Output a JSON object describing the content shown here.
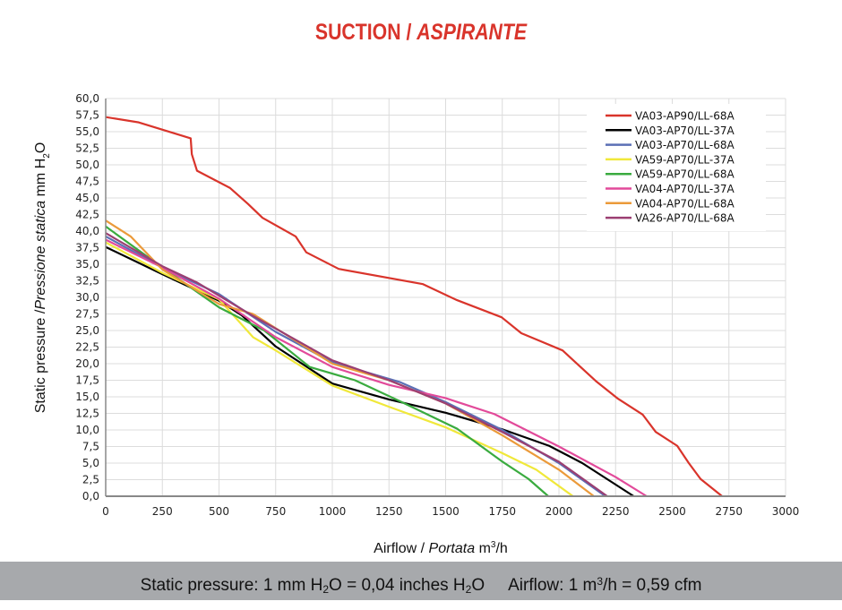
{
  "title": {
    "main": "SUCTION /",
    "italic": "ASPIRANTE"
  },
  "footer": {
    "pressure_prefix": "Static pressure: 1 mm H",
    "pressure_mid": "O = 0,04 inches H",
    "pressure_end": "O",
    "sub": "2",
    "airflow_prefix": "Airflow: 1 m",
    "sup": "3",
    "airflow_end": "/h = 0,59 cfm"
  },
  "chart_data": {
    "type": "line",
    "title": "SUCTION / ASPIRANTE",
    "xlabel": "Airflow / Portata m³/h",
    "xlabel_parts": {
      "a": "Airflow /",
      "b": "Portata",
      "c": "m",
      "sup": "3",
      "d": "/h"
    },
    "ylabel": "Static pressure / Pressione statica mm H2O",
    "ylabel_parts": {
      "a": "Static pressure /",
      "b": "Pressione statica",
      "c": "mm  H",
      "sub": "2",
      "d": "O"
    },
    "xlim": [
      0,
      3000
    ],
    "ylim": [
      0,
      60
    ],
    "x_ticks": [
      "0",
      "250",
      "500",
      "750",
      "1000",
      "1250",
      "1500",
      "1750",
      "2000",
      "2250",
      "2500",
      "2750",
      "3000"
    ],
    "y_ticks": [
      "0,0",
      "2,5",
      "5,0",
      "7,5",
      "10,0",
      "12,5",
      "15,0",
      "17,5",
      "20,0",
      "22,5",
      "25,0",
      "27,5",
      "30,0",
      "32,5",
      "35,0",
      "37,5",
      "40,0",
      "42,5",
      "45,0",
      "47,5",
      "50,0",
      "52,5",
      "55,0",
      "57,5",
      "60,0"
    ],
    "grid": true,
    "legend_position": "top-right",
    "series": [
      {
        "name": "VA03-AP90/LL-68A",
        "color": "#d9342b",
        "points": [
          [
            0,
            57.2
          ],
          [
            146,
            56.4
          ],
          [
            375,
            54.0
          ],
          [
            380,
            51.6
          ],
          [
            403,
            49.1
          ],
          [
            549,
            46.5
          ],
          [
            628,
            44.1
          ],
          [
            692,
            42.0
          ],
          [
            838,
            39.2
          ],
          [
            885,
            36.8
          ],
          [
            1028,
            34.3
          ],
          [
            1400,
            32.0
          ],
          [
            1549,
            29.6
          ],
          [
            1747,
            27.0
          ],
          [
            1834,
            24.6
          ],
          [
            2016,
            22.0
          ],
          [
            2162,
            17.4
          ],
          [
            2261,
            14.7
          ],
          [
            2370,
            12.3
          ],
          [
            2427,
            9.7
          ],
          [
            2522,
            7.6
          ],
          [
            2573,
            5.0
          ],
          [
            2625,
            2.6
          ],
          [
            2720,
            0
          ]
        ]
      },
      {
        "name": "VA03-AP70/LL-37A",
        "color": "#000000",
        "points": [
          [
            0,
            37.6
          ],
          [
            250,
            33.5
          ],
          [
            500,
            29.5
          ],
          [
            600,
            27.3
          ],
          [
            750,
            22.6
          ],
          [
            1000,
            17.0
          ],
          [
            1250,
            14.6
          ],
          [
            1500,
            12.6
          ],
          [
            1750,
            10.1
          ],
          [
            1957,
            7.6
          ],
          [
            2103,
            5.0
          ],
          [
            2330,
            0
          ]
        ]
      },
      {
        "name": "VA03-AP70/LL-68A",
        "color": "#5b6fb5",
        "points": [
          [
            0,
            39.2
          ],
          [
            250,
            34.5
          ],
          [
            500,
            30.5
          ],
          [
            750,
            24.8
          ],
          [
            1000,
            20.2
          ],
          [
            1300,
            17.2
          ],
          [
            1500,
            14.2
          ],
          [
            1750,
            10.0
          ],
          [
            2000,
            5.0
          ],
          [
            2205,
            0
          ]
        ]
      },
      {
        "name": "VA59-AP70/LL-37A",
        "color": "#f0e83a",
        "points": [
          [
            0,
            38.3
          ],
          [
            250,
            33.7
          ],
          [
            500,
            29.7
          ],
          [
            650,
            24.0
          ],
          [
            750,
            22.0
          ],
          [
            1000,
            16.7
          ],
          [
            1250,
            13.5
          ],
          [
            1500,
            10.4
          ],
          [
            1750,
            6.5
          ],
          [
            1900,
            4.0
          ],
          [
            2062,
            0
          ]
        ]
      },
      {
        "name": "VA59-AP70/LL-68A",
        "color": "#3aab3f",
        "points": [
          [
            0,
            40.7
          ],
          [
            250,
            34.5
          ],
          [
            500,
            28.5
          ],
          [
            700,
            25.0
          ],
          [
            900,
            19.5
          ],
          [
            1100,
            17.5
          ],
          [
            1300,
            14.3
          ],
          [
            1550,
            10.2
          ],
          [
            1747,
            5.3
          ],
          [
            1866,
            2.6
          ],
          [
            1953,
            0
          ]
        ]
      },
      {
        "name": "VA04-AP70/LL-37A",
        "color": "#e24a9a",
        "points": [
          [
            0,
            38.7
          ],
          [
            250,
            34.5
          ],
          [
            500,
            29.8
          ],
          [
            750,
            24.0
          ],
          [
            1000,
            19.5
          ],
          [
            1250,
            16.8
          ],
          [
            1500,
            14.8
          ],
          [
            1715,
            12.4
          ],
          [
            2000,
            7.5
          ],
          [
            2250,
            2.9
          ],
          [
            2387,
            0
          ]
        ]
      },
      {
        "name": "VA04-AP70/LL-68A",
        "color": "#eb9a3a",
        "points": [
          [
            0,
            41.6
          ],
          [
            110,
            39.2
          ],
          [
            250,
            34.2
          ],
          [
            500,
            29.0
          ],
          [
            650,
            27.5
          ],
          [
            1000,
            20.0
          ],
          [
            1250,
            17.5
          ],
          [
            1500,
            14.0
          ],
          [
            1750,
            9.2
          ],
          [
            2000,
            4.0
          ],
          [
            2154,
            0
          ]
        ]
      },
      {
        "name": "VA26-AP70/LL-68A",
        "color": "#9b3f72",
        "points": [
          [
            0,
            39.7
          ],
          [
            250,
            34.7
          ],
          [
            400,
            32.3
          ],
          [
            650,
            27.2
          ],
          [
            1000,
            20.5
          ],
          [
            1250,
            17.5
          ],
          [
            1500,
            14.0
          ],
          [
            1750,
            9.7
          ],
          [
            2000,
            5.2
          ],
          [
            2213,
            0
          ]
        ]
      }
    ]
  }
}
